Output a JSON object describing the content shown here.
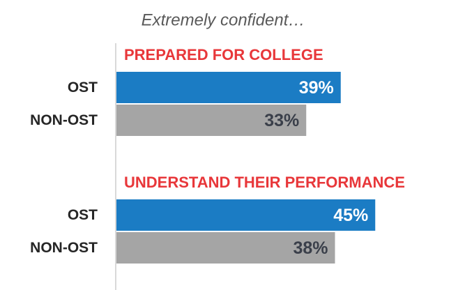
{
  "chart_data": {
    "type": "bar",
    "orientation": "horizontal",
    "title": "Extremely confident…",
    "categories": [
      "PREPARED FOR COLLEGE",
      "UNDERSTAND THEIR PERFORMANCE"
    ],
    "series": [
      {
        "name": "OST",
        "color": "#1b7cc4",
        "values": [
          39,
          45
        ],
        "value_labels": [
          "39%",
          "45%"
        ]
      },
      {
        "name": "NON-OST",
        "color": "#a5a5a5",
        "values": [
          33,
          38
        ],
        "value_labels": [
          "33%",
          "38%"
        ]
      }
    ],
    "xlim": [
      0,
      60
    ]
  }
}
